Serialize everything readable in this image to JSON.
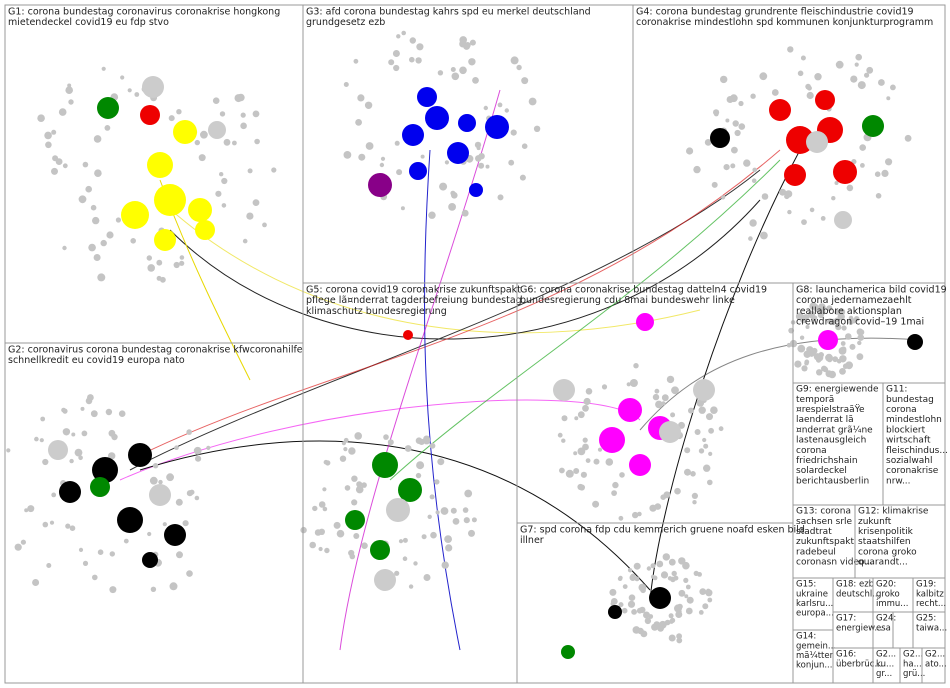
{
  "groups": [
    {
      "lines": [
        "G1: corona bundestag coronavirus coronakrise hongkong",
        "mietendeckel covid19 eu fdp stvo"
      ]
    },
    {
      "lines": [
        "G3: afd corona bundestag kahrs spd eu merkel deutschland",
        "grundgesetz ezb"
      ]
    },
    {
      "lines": [
        "G4: corona bundestag grundrente fleischindustrie covid19",
        "coronakrise mindestlohn spd kommunen konjunkturprogramm"
      ]
    },
    {
      "lines": [
        "G2: coronavirus corona bundestag coronakrise kfwcoronahilfe",
        "schnellkredit eu covid19 europa nato"
      ]
    },
    {
      "lines": [
        "G5: corona covid19 coronakrise zukunftspakt",
        "pflege lã¤nderrat tagderbefreiung bundestag",
        "klimaschutz bundesregierung"
      ]
    },
    {
      "lines": [
        "G6: corona coronakrise bundestag datteln4 covid19",
        "bundesregierung cdu 8mai bundeswehr linke"
      ]
    },
    {
      "lines": [
        "G8: launchamerica bild covid19",
        "corona jedernamezaehlt",
        "reallabore aktionsplan",
        "crewdragon covid–19 1mai"
      ]
    },
    {
      "lines": [
        "G9: energiewende",
        "temporã",
        "¤respielstraãŸe",
        "laenderrat lã",
        "¤nderrat grã¼ne",
        "lastenausgleich",
        "corona",
        "friedrichshain",
        "solardeckel",
        "berichtausberlin"
      ]
    },
    {
      "lines": [
        "G11:",
        "bundestag",
        "corona",
        "mindestlohn",
        "blockiert",
        "wirtschaft",
        "fleischindus...",
        "sozialwahl",
        "coronakrise",
        "nrw..."
      ]
    },
    {
      "lines": [
        "G13: corona",
        "sachsen srle",
        "stadtrat",
        "zukunftspakt",
        "radebeul",
        "coronasn video..."
      ]
    },
    {
      "lines": [
        "G12: klimakrise",
        "zukunft",
        "krisenpolitik",
        "staatshilfen",
        "corona groko",
        "quarandt..."
      ]
    },
    {
      "lines": [
        "G7: spd corona fdp cdu kemmerich gruene noafd esken bild",
        "illner"
      ]
    },
    {
      "lines": [
        "G15:",
        "ukraine",
        "karlsru...",
        "europa..."
      ]
    },
    {
      "lines": [
        "G18: ezb",
        "deutschl..."
      ]
    },
    {
      "lines": [
        "G20:",
        "groko",
        "immu..."
      ]
    },
    {
      "lines": [
        "G19:",
        "kalbitz",
        "recht..."
      ]
    },
    {
      "lines": [
        "G17:",
        "energiew..."
      ]
    },
    {
      "lines": [
        "G24:",
        "esa"
      ]
    },
    {
      "lines": [
        "G25:",
        "taiwa..."
      ]
    },
    {
      "lines": [
        "G14:",
        "gemein...",
        "mã¼tter",
        "konjun..."
      ]
    },
    {
      "lines": [
        "G16:",
        "überbrüc..."
      ]
    },
    {
      "lines": [
        "G2...",
        "ku...",
        "gr..."
      ]
    },
    {
      "lines": [
        "G2...",
        "ha...",
        "grü..."
      ]
    },
    {
      "lines": [
        "G2...",
        "ato..."
      ]
    }
  ]
}
